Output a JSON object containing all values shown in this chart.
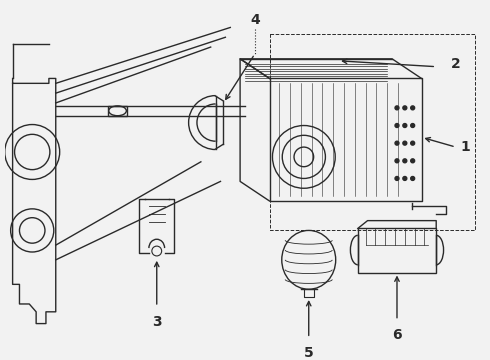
{
  "bg_color": "#f2f2f2",
  "line_color": "#2a2a2a",
  "fig_width": 4.9,
  "fig_height": 3.6,
  "dpi": 100
}
